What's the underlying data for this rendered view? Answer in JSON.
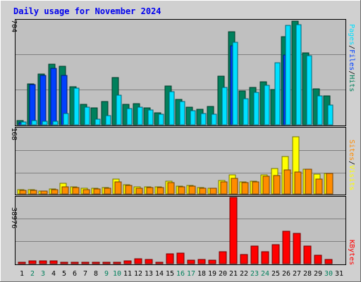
{
  "chart_data": [
    {
      "type": "bar",
      "panel": "hits-files-pages",
      "title": "Daily usage for November 2024",
      "ylabel_parts": [
        "Pages",
        "/",
        "Files",
        "/",
        "Hits"
      ],
      "ymax_label": "704",
      "ylim": [
        0,
        704
      ],
      "grid": true,
      "colors": {
        "Hits": "#00805c",
        "Files": "#0040ff",
        "Pages": "#00e0ff"
      },
      "categories": [
        "1",
        "2",
        "3",
        "4",
        "5",
        "6",
        "7",
        "8",
        "9",
        "10",
        "11",
        "12",
        "13",
        "14",
        "15",
        "16",
        "17",
        "18",
        "19",
        "20",
        "21",
        "22",
        "23",
        "24",
        "25",
        "26",
        "27",
        "28",
        "29",
        "30",
        "31"
      ],
      "series": [
        {
          "name": "Hits",
          "values": [
            30,
            275,
            340,
            405,
            390,
            255,
            135,
            115,
            155,
            315,
            135,
            140,
            115,
            80,
            260,
            170,
            120,
            105,
            125,
            325,
            625,
            225,
            250,
            290,
            235,
            590,
            695,
            480,
            240,
            195,
            0
          ]
        },
        {
          "name": "Files",
          "values": [
            15,
            270,
            330,
            380,
            330,
            0,
            0,
            0,
            0,
            0,
            0,
            0,
            0,
            0,
            0,
            0,
            0,
            0,
            0,
            0,
            530,
            0,
            0,
            0,
            0,
            470,
            0,
            0,
            0,
            0,
            0
          ]
        },
        {
          "name": "Pages",
          "values": [
            20,
            30,
            25,
            25,
            75,
            245,
            120,
            40,
            60,
            200,
            110,
            120,
            100,
            70,
            220,
            155,
            95,
            75,
            70,
            250,
            555,
            175,
            215,
            265,
            415,
            665,
            670,
            465,
            195,
            130,
            0
          ]
        }
      ]
    },
    {
      "type": "bar",
      "panel": "visits-sites",
      "ylabel_parts": [
        "Sites",
        "/",
        "Visits"
      ],
      "ymax_label": "168",
      "ylim": [
        0,
        168
      ],
      "grid": true,
      "colors": {
        "Visits": "#ffff00",
        "Sites": "#ff8c00"
      },
      "series": [
        {
          "name": "Visits",
          "values": [
            10,
            10,
            8,
            12,
            27,
            17,
            14,
            14,
            16,
            37,
            23,
            17,
            17,
            17,
            33,
            20,
            22,
            16,
            15,
            34,
            49,
            31,
            33,
            48,
            65,
            94,
            145,
            62,
            50,
            52,
            0
          ]
        },
        {
          "name": "Sites",
          "values": [
            9,
            9,
            7,
            11,
            18,
            16,
            11,
            12,
            15,
            30,
            21,
            15,
            16,
            16,
            29,
            18,
            20,
            15,
            15,
            30,
            40,
            28,
            30,
            44,
            47,
            61,
            56,
            63,
            37,
            52,
            0
          ]
        }
      ]
    },
    {
      "type": "bar",
      "panel": "kbytes",
      "ylabel": "KBytes",
      "ymax_label": "38976",
      "ylim": [
        0,
        38976
      ],
      "grid": true,
      "colors": {
        "KBytes": "#ff0000"
      },
      "series": [
        {
          "name": "KBytes",
          "values": [
            300,
            1500,
            1500,
            1500,
            1000,
            200,
            200,
            200,
            500,
            1000,
            1500,
            3000,
            2500,
            1000,
            6000,
            6300,
            2200,
            2500,
            2200,
            7200,
            38900,
            5500,
            10500,
            7000,
            11000,
            19000,
            17800,
            10500,
            5000,
            2500,
            0
          ]
        }
      ]
    }
  ],
  "xaxis": {
    "days": [
      "1",
      "2",
      "3",
      "4",
      "5",
      "6",
      "7",
      "8",
      "9",
      "10",
      "11",
      "12",
      "13",
      "14",
      "15",
      "16",
      "17",
      "18",
      "19",
      "20",
      "21",
      "22",
      "23",
      "24",
      "25",
      "26",
      "27",
      "28",
      "29",
      "30",
      "31"
    ],
    "weekend_days": [
      "2",
      "3",
      "9",
      "10",
      "16",
      "17",
      "23",
      "24",
      "30"
    ],
    "weekday_color": "#000000",
    "weekend_color": "#00805c"
  }
}
